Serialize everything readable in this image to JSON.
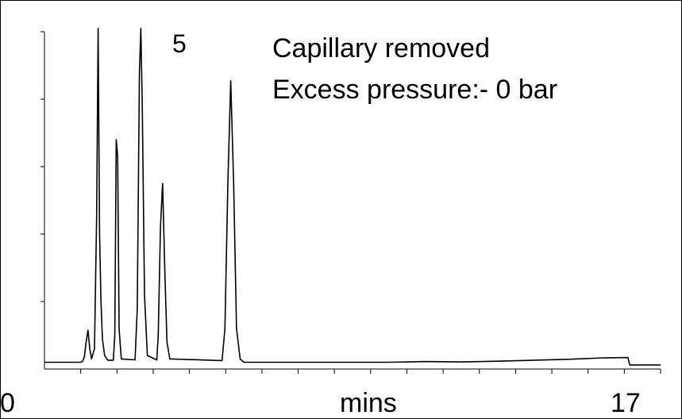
{
  "chart_data": {
    "type": "line",
    "title": "",
    "annotations": {
      "peak_number": "5",
      "note_line1": "Capillary removed",
      "note_line2": "Excess pressure:- 0 bar"
    },
    "xlabel": "mins",
    "ylabel": "",
    "x_tick_labels": {
      "start": "0",
      "end": "17"
    },
    "xlim": [
      0,
      17
    ],
    "ylim": [
      0,
      100
    ],
    "grid": false,
    "series": [
      {
        "color": "#000000",
        "points": [
          [
            0.0,
            2.0
          ],
          [
            1.0,
            2.0
          ],
          [
            1.05,
            2.2
          ],
          [
            1.1,
            3.5
          ],
          [
            1.15,
            8.0
          ],
          [
            1.2,
            11.5
          ],
          [
            1.25,
            6.0
          ],
          [
            1.3,
            3.0
          ],
          [
            1.38,
            6.0
          ],
          [
            1.44,
            45.0
          ],
          [
            1.48,
            101.0
          ],
          [
            1.52,
            40.0
          ],
          [
            1.56,
            20.0
          ],
          [
            1.6,
            9.0
          ],
          [
            1.66,
            4.0
          ],
          [
            1.75,
            2.6
          ],
          [
            1.9,
            2.6
          ],
          [
            1.94,
            10.0
          ],
          [
            1.98,
            68.0
          ],
          [
            2.02,
            63.0
          ],
          [
            2.06,
            12.0
          ],
          [
            2.12,
            3.0
          ],
          [
            2.5,
            2.7
          ],
          [
            2.56,
            18.0
          ],
          [
            2.62,
            88.0
          ],
          [
            2.66,
            101.0
          ],
          [
            2.7,
            78.0
          ],
          [
            2.76,
            22.0
          ],
          [
            2.84,
            4.0
          ],
          [
            3.1,
            2.7
          ],
          [
            3.14,
            10.0
          ],
          [
            3.2,
            42.0
          ],
          [
            3.26,
            55.0
          ],
          [
            3.32,
            30.0
          ],
          [
            3.38,
            8.0
          ],
          [
            3.46,
            3.0
          ],
          [
            4.9,
            2.5
          ],
          [
            4.98,
            12.0
          ],
          [
            5.06,
            55.0
          ],
          [
            5.14,
            85.5
          ],
          [
            5.22,
            55.0
          ],
          [
            5.3,
            12.0
          ],
          [
            5.4,
            3.0
          ],
          [
            5.5,
            2.0
          ],
          [
            6.5,
            2.0
          ],
          [
            7.5,
            2.0
          ],
          [
            8.5,
            2.0
          ],
          [
            9.5,
            2.0
          ],
          [
            10.5,
            2.2
          ],
          [
            11.5,
            2.1
          ],
          [
            12.5,
            2.3
          ],
          [
            13.5,
            2.6
          ],
          [
            14.5,
            2.9
          ],
          [
            15.4,
            3.3
          ],
          [
            16.1,
            3.4
          ],
          [
            16.15,
            1.2
          ],
          [
            17.0,
            1.2
          ]
        ]
      }
    ]
  }
}
